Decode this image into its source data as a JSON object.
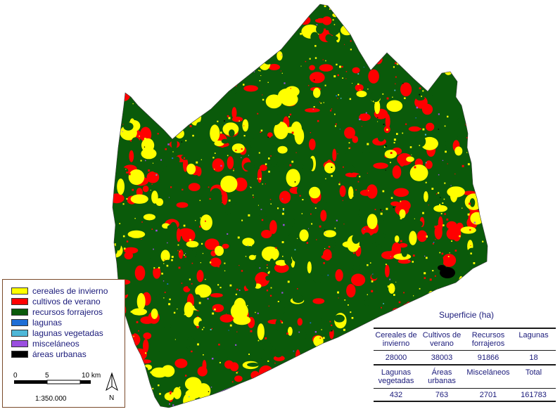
{
  "legend": {
    "items": [
      {
        "label": "cereales de invierno",
        "color": "#ffff00"
      },
      {
        "label": "cultivos de verano",
        "color": "#ff0000"
      },
      {
        "label": "recursos forrajeros",
        "color": "#0a5a0a"
      },
      {
        "label": "lagunas",
        "color": "#1e6ed6"
      },
      {
        "label": "lagunas vegetadas",
        "color": "#4fb8d8"
      },
      {
        "label": "misceláneos",
        "color": "#9b4fe0"
      },
      {
        "label": "áreas urbanas",
        "color": "#000000"
      }
    ],
    "scale": {
      "ticks": [
        "0",
        "5",
        "10 km"
      ],
      "ratio": "1:350.000",
      "north": "N"
    }
  },
  "table": {
    "title": "Superficie (ha)",
    "rows": [
      {
        "headers": [
          "Cereales de invierno",
          "Cultivos de verano",
          "Recursos forrajeros",
          "Lagunas"
        ],
        "values": [
          "28000",
          "38003",
          "91866",
          "18"
        ]
      },
      {
        "headers": [
          "Lagunas vegetadas",
          "Áreas urbanas",
          "Misceláneos",
          "Total"
        ],
        "values": [
          "432",
          "763",
          "2701",
          "161783"
        ]
      }
    ]
  }
}
